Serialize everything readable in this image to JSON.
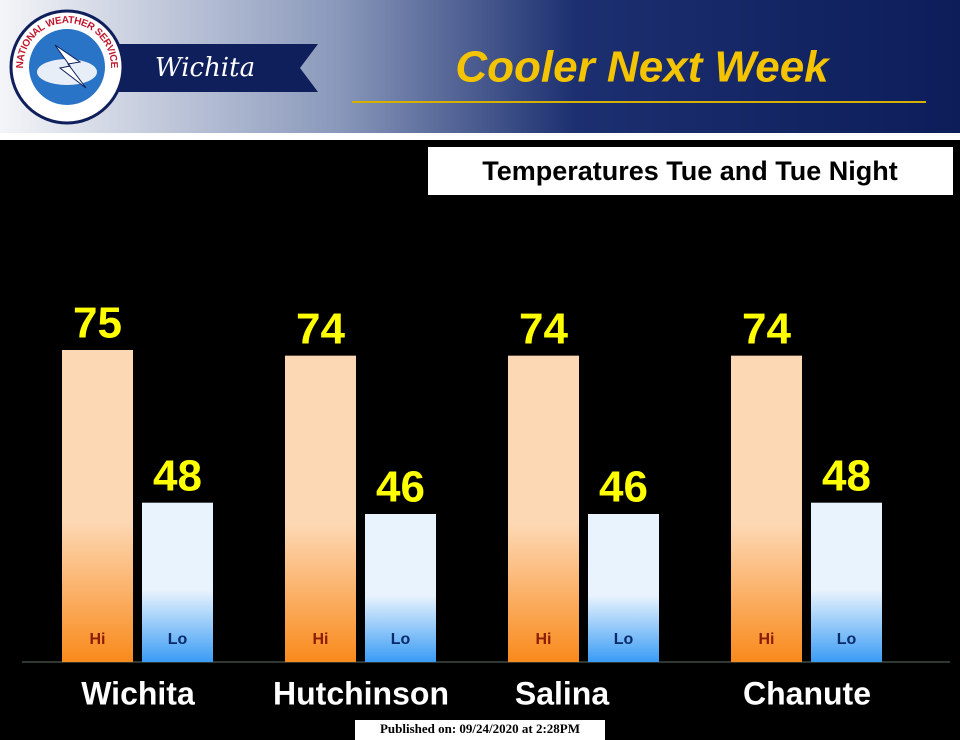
{
  "header": {
    "logo_text": "NATIONAL WEATHER SERVICE",
    "office": "Wichita",
    "title": "Cooler Next Week"
  },
  "chart_data": {
    "type": "bar",
    "subtitle": "Temperatures Tue and Tue Night",
    "categories": [
      "Wichita",
      "Hutchinson",
      "Salina",
      "Chanute"
    ],
    "series": [
      {
        "name": "Hi",
        "color": "#f98a1c",
        "values": [
          75,
          74,
          74,
          74
        ]
      },
      {
        "name": "Lo",
        "color": "#3a9cf5",
        "values": [
          48,
          46,
          46,
          48
        ]
      }
    ]
  },
  "footer": "Published on: 09/24/2020 at 2:28PM"
}
